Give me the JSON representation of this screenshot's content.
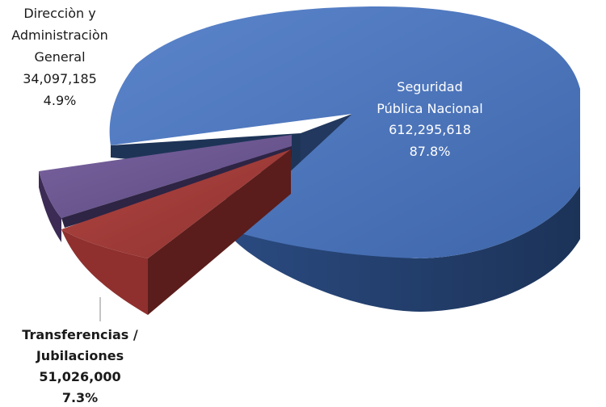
{
  "chart_data": {
    "type": "pie",
    "title": "",
    "slices": [
      {
        "name_lines": [
          "Seguridad",
          "Pública Nacional"
        ],
        "value_label": "612,295,618",
        "value": 612295618,
        "percent_label": "87.8%",
        "percent": 87.8,
        "color": "#4a72b8"
      },
      {
        "name_lines": [
          "Transferencias /",
          "Jubilaciones"
        ],
        "value_label": "51,026,000",
        "value": 51026000,
        "percent_label": "7.3%",
        "percent": 7.3,
        "color": "#9b3a37"
      },
      {
        "name_lines": [
          "Direcciòn y",
          "Administraciòn",
          "General"
        ],
        "value_label": "34,097,185",
        "value": 34097185,
        "percent_label": "4.9%",
        "percent": 4.9,
        "color": "#6b558f"
      }
    ],
    "style": "3d-exploded"
  }
}
